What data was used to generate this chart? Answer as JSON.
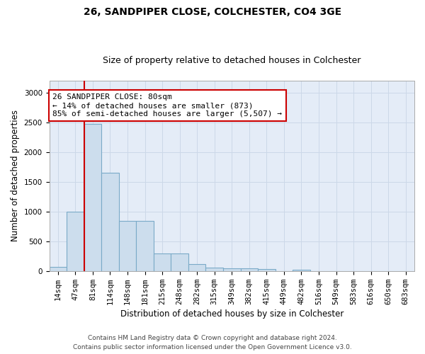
{
  "title1": "26, SANDPIPER CLOSE, COLCHESTER, CO4 3GE",
  "title2": "Size of property relative to detached houses in Colchester",
  "xlabel": "Distribution of detached houses by size in Colchester",
  "ylabel": "Number of detached properties",
  "footer1": "Contains HM Land Registry data © Crown copyright and database right 2024.",
  "footer2": "Contains public sector information licensed under the Open Government Licence v3.0.",
  "categories": [
    "14sqm",
    "47sqm",
    "81sqm",
    "114sqm",
    "148sqm",
    "181sqm",
    "215sqm",
    "248sqm",
    "282sqm",
    "315sqm",
    "349sqm",
    "382sqm",
    "415sqm",
    "449sqm",
    "482sqm",
    "516sqm",
    "549sqm",
    "583sqm",
    "616sqm",
    "650sqm",
    "683sqm"
  ],
  "values": [
    70,
    1000,
    2470,
    1650,
    840,
    840,
    290,
    290,
    120,
    60,
    50,
    50,
    30,
    0,
    25,
    0,
    0,
    0,
    0,
    0,
    0
  ],
  "bar_color": "#ccdded",
  "bar_edge_color": "#7aaac8",
  "red_line_color": "#cc0000",
  "annotation_line1": "26 SANDPIPER CLOSE: 80sqm",
  "annotation_line2": "← 14% of detached houses are smaller (873)",
  "annotation_line3": "85% of semi-detached houses are larger (5,507) →",
  "annotation_box_color": "#ffffff",
  "annotation_box_edge_color": "#cc0000",
  "ylim": [
    0,
    3200
  ],
  "yticks": [
    0,
    500,
    1000,
    1500,
    2000,
    2500,
    3000
  ],
  "grid_color": "#ccd8e8",
  "bg_color": "#e4ecf7",
  "title1_fontsize": 10,
  "title2_fontsize": 9,
  "axis_label_fontsize": 8.5,
  "tick_fontsize": 7.5,
  "annot_fontsize": 8,
  "footer_fontsize": 6.5
}
